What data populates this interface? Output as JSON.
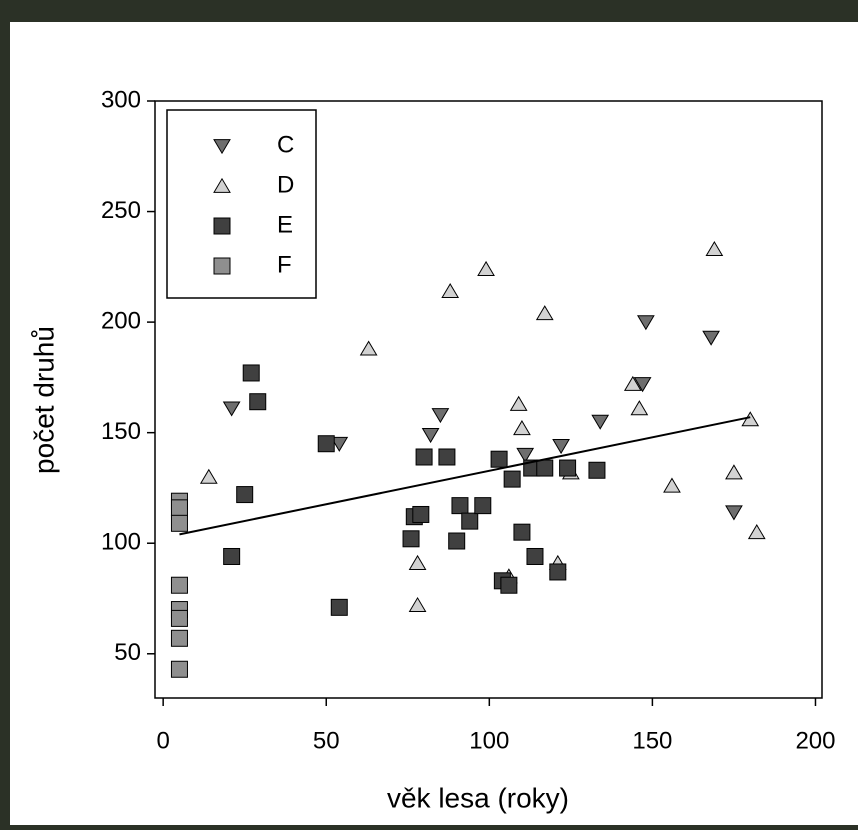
{
  "chart_data": {
    "type": "scatter",
    "x_label": "věk lesa (roky)",
    "y_label": "počet druhů",
    "xlim": [
      -2.5,
      202
    ],
    "ylim": [
      30,
      300
    ],
    "xticks": [
      0,
      50,
      100,
      150,
      200
    ],
    "yticks": [
      50,
      100,
      150,
      200,
      250,
      300
    ],
    "legend": "upper left",
    "series": [
      {
        "name": "C",
        "marker": "triangle-down",
        "color": "#6e6e6e",
        "x": [
          21,
          54,
          82,
          85,
          111,
          122,
          134,
          147,
          148,
          168,
          175
        ],
        "values": [
          161,
          145,
          149,
          158,
          140,
          144,
          155,
          172,
          200,
          193,
          114
        ]
      },
      {
        "name": "D",
        "marker": "triangle-up",
        "color": "#d2d2d2",
        "x": [
          14,
          63,
          78,
          78,
          88,
          99,
          106,
          109,
          110,
          117,
          121,
          125,
          144,
          146,
          156,
          169,
          175,
          180,
          182
        ],
        "values": [
          130,
          188,
          91,
          72,
          214,
          224,
          85,
          163,
          152,
          204,
          91,
          132,
          172,
          161,
          126,
          233,
          132,
          156,
          105
        ]
      },
      {
        "name": "E",
        "marker": "square",
        "color": "#404040",
        "x": [
          21,
          25,
          27,
          29,
          50,
          54,
          76,
          77,
          79,
          80,
          87,
          90,
          91,
          94,
          98,
          103,
          104,
          106,
          107,
          110,
          113,
          114,
          117,
          121,
          124,
          133
        ],
        "values": [
          94,
          122,
          177,
          164,
          145,
          71,
          102,
          112,
          113,
          139,
          139,
          101,
          117,
          110,
          117,
          138,
          83,
          81,
          129,
          105,
          134,
          94,
          134,
          87,
          134,
          133
        ]
      },
      {
        "name": "F",
        "marker": "square",
        "color": "#8f8f8f",
        "x": [
          5,
          5,
          5,
          5,
          5,
          5,
          5,
          5
        ],
        "values": [
          119,
          116,
          109,
          81,
          70,
          66,
          57,
          43
        ]
      }
    ],
    "trend": {
      "x": [
        5,
        180
      ],
      "y": [
        104,
        157
      ]
    }
  }
}
